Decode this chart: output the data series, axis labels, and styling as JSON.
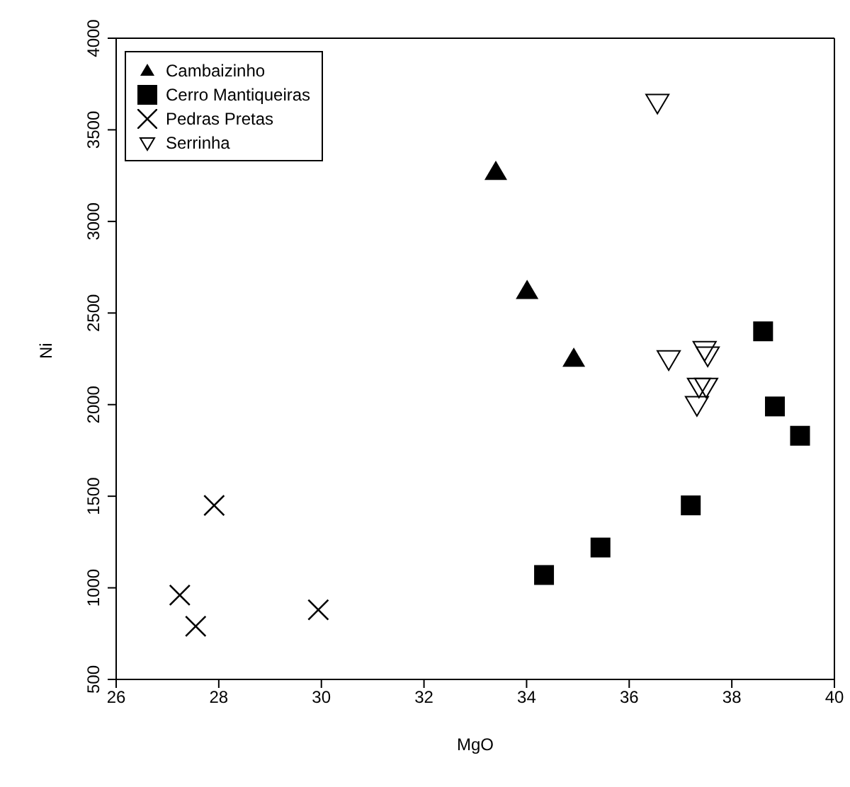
{
  "chart_data": {
    "type": "scatter",
    "xlabel": "MgO",
    "ylabel": "Ni",
    "xlim": [
      26,
      40
    ],
    "xticks": [
      26,
      28,
      30,
      32,
      34,
      36,
      38,
      40
    ],
    "ylim": [
      500,
      4000
    ],
    "yticks": [
      500,
      1000,
      1500,
      2000,
      2500,
      3000,
      3500,
      4000
    ],
    "legend": "top left",
    "series": [
      {
        "name": "Cambaizinho",
        "color": "#000000",
        "marker": "triangle",
        "x": [
          33.4,
          34.01,
          34.92
        ],
        "values": [
          3270,
          2620,
          2250
        ]
      },
      {
        "name": "Cerro Mantiqueiras",
        "color": "#000000",
        "marker": "square",
        "x": [
          38.61,
          38.84,
          39.33,
          37.2,
          35.44,
          34.34
        ],
        "values": [
          2400,
          1990,
          1830,
          1450,
          1220,
          1070
        ]
      },
      {
        "name": "Pedras Pretas",
        "color": "#000000",
        "marker": "cross",
        "x": [
          27.91,
          27.24,
          27.55,
          29.94
        ],
        "values": [
          1450,
          960,
          790,
          880
        ]
      },
      {
        "name": "Serrinha",
        "color": "#000000",
        "marker": "triangle-down",
        "x": [
          36.55,
          36.77,
          37.47,
          37.53,
          37.36,
          37.5,
          37.32
        ],
        "values": [
          3650,
          2250,
          2300,
          2270,
          2100,
          2100,
          2000
        ]
      }
    ]
  }
}
